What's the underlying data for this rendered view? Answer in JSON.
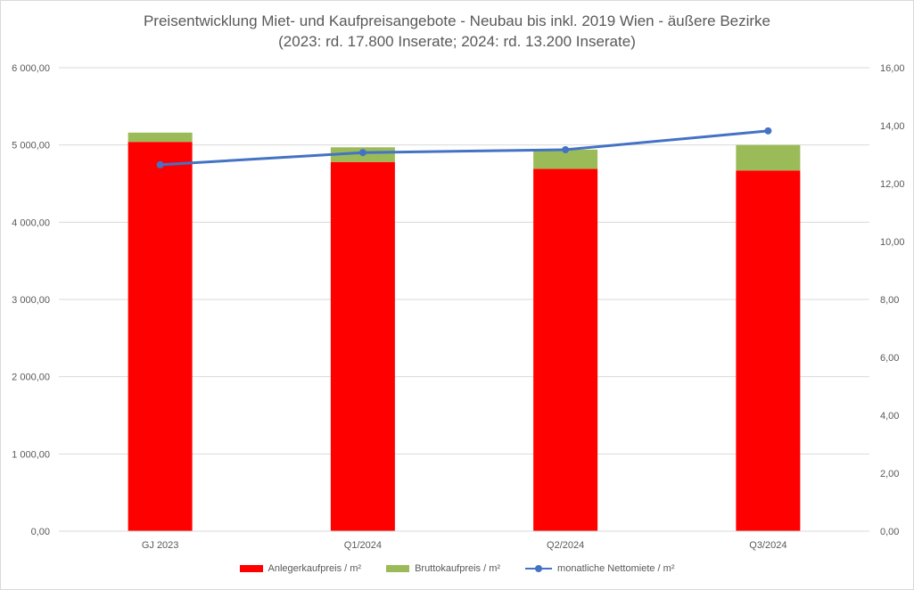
{
  "chart_data": {
    "type": "bar",
    "title": "Preisentwicklung Miet- und Kaufpreisangebote - Neubau bis inkl. 2019 Wien - äußere Bezirke",
    "subtitle": "(2023: rd. 17.800 Inserate; 2024: rd. 13.200 Inserate)",
    "categories": [
      "GJ 2023",
      "Q1/2024",
      "Q2/2024",
      "Q3/2024"
    ],
    "series": [
      {
        "name": "Anlegerkaufpreis / m²",
        "type": "bar",
        "stack": "kauf",
        "color": "#ff0000",
        "axis": "left",
        "values": [
          5040,
          4780,
          4690,
          4670
        ]
      },
      {
        "name": "Bruttokaufpreis / m²",
        "type": "bar",
        "stack": "kauf",
        "color": "#9bbb59",
        "axis": "left",
        "values": [
          120,
          190,
          250,
          330
        ]
      },
      {
        "name": "monatliche Nettomiete / m²",
        "type": "line",
        "color": "#4472c4",
        "axis": "right",
        "values": [
          12.65,
          13.07,
          13.17,
          13.82
        ]
      }
    ],
    "ylim_left": [
      0,
      6000
    ],
    "ylim_right": [
      0,
      16
    ],
    "yticks_left": [
      "0,00",
      "1 000,00",
      "2 000,00",
      "3 000,00",
      "4 000,00",
      "5 000,00",
      "6 000,00"
    ],
    "yticks_right": [
      "0,00",
      "2,00",
      "4,00",
      "6,00",
      "8,00",
      "10,00",
      "12,00",
      "14,00",
      "16,00"
    ],
    "grid": true,
    "legend_position": "bottom"
  }
}
